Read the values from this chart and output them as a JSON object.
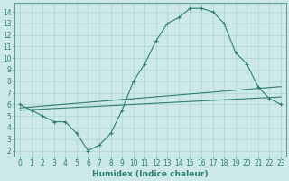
{
  "x": [
    0,
    1,
    2,
    3,
    4,
    5,
    6,
    7,
    8,
    9,
    10,
    11,
    12,
    13,
    14,
    15,
    16,
    17,
    18,
    19,
    20,
    21,
    22,
    23
  ],
  "y_main": [
    6.0,
    5.5,
    5.0,
    4.5,
    4.5,
    3.5,
    2.0,
    2.5,
    3.5,
    5.5,
    8.0,
    9.5,
    11.5,
    13.0,
    13.5,
    14.3,
    14.3,
    14.0,
    13.0,
    10.5,
    9.5,
    7.5,
    6.5,
    6.0
  ],
  "y_line1": [
    5.7,
    5.78,
    5.86,
    5.94,
    6.02,
    6.1,
    6.18,
    6.26,
    6.34,
    6.42,
    6.5,
    6.58,
    6.66,
    6.74,
    6.82,
    6.9,
    6.98,
    7.06,
    7.14,
    7.22,
    7.3,
    7.38,
    7.46,
    7.54
  ],
  "y_line2": [
    5.5,
    5.55,
    5.6,
    5.65,
    5.7,
    5.75,
    5.8,
    5.85,
    5.9,
    5.95,
    6.0,
    6.05,
    6.1,
    6.15,
    6.2,
    6.25,
    6.3,
    6.35,
    6.4,
    6.45,
    6.5,
    6.55,
    6.6,
    6.65
  ],
  "line_color": "#2e7d73",
  "bg_color": "#cce9e7",
  "grid_color": "#aed4d2",
  "xlabel": "Humidex (Indice chaleur)",
  "ylim": [
    1.5,
    14.8
  ],
  "xlim": [
    -0.5,
    23.5
  ],
  "yticks": [
    2,
    3,
    4,
    5,
    6,
    7,
    8,
    9,
    10,
    11,
    12,
    13,
    14
  ],
  "xticks": [
    0,
    1,
    2,
    3,
    4,
    5,
    6,
    7,
    8,
    9,
    10,
    11,
    12,
    13,
    14,
    15,
    16,
    17,
    18,
    19,
    20,
    21,
    22,
    23
  ],
  "tick_fontsize": 5.5,
  "xlabel_fontsize": 6.5
}
